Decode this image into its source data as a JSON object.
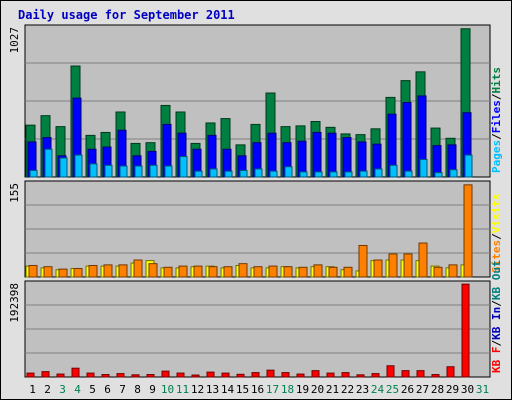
{
  "colors": {
    "background": "#ffffff",
    "frame_bg": "#e0e0e0",
    "plot_bg": "#c0c0c0",
    "title": "#0000c0",
    "hits": "#008040",
    "files": "#0000ff",
    "pages": "#00c0ff",
    "visits": "#ffff00",
    "sites": "#ff8000",
    "kb_in": "#0000c0",
    "kb_out": "#008080",
    "kb_f": "#ff0000",
    "weekend_label": "#00804f"
  },
  "chart_data": {
    "title": "Daily usage for September 2011",
    "type": "bar",
    "categories": [
      "1",
      "2",
      "3",
      "4",
      "5",
      "6",
      "7",
      "8",
      "9",
      "10",
      "11",
      "12",
      "13",
      "14",
      "15",
      "16",
      "17",
      "18",
      "19",
      "20",
      "21",
      "22",
      "23",
      "24",
      "25",
      "26",
      "27",
      "28",
      "29",
      "30",
      "31"
    ],
    "weekend_days": [
      "3",
      "4",
      "10",
      "11",
      "17",
      "18",
      "24",
      "25",
      "31"
    ],
    "panels": [
      {
        "name": "hits-files-pages",
        "ymax_label": "1027",
        "ymax": 1027,
        "legend": [
          "Pages",
          "/",
          "Files",
          "/",
          "Hits"
        ],
        "series": [
          {
            "name": "Hits",
            "color_key": "hits",
            "values": [
              355,
              420,
              345,
              760,
              285,
              305,
              445,
              230,
              235,
              490,
              445,
              230,
              370,
              400,
              220,
              360,
              575,
              345,
              350,
              380,
              340,
              295,
              290,
              330,
              545,
              660,
              720,
              335,
              265,
              1015,
              0
            ]
          },
          {
            "name": "Files",
            "color_key": "files",
            "values": [
              240,
              270,
              145,
              540,
              190,
              205,
              320,
              145,
              175,
              360,
              300,
              190,
              285,
              190,
              145,
              235,
              300,
              235,
              245,
              305,
              300,
              270,
              240,
              225,
              430,
              510,
              555,
              215,
              220,
              440,
              0
            ]
          },
          {
            "name": "Pages",
            "color_key": "pages",
            "values": [
              45,
              190,
              130,
              150,
              90,
              80,
              75,
              75,
              80,
              75,
              140,
              40,
              55,
              40,
              45,
              55,
              40,
              70,
              35,
              35,
              35,
              35,
              40,
              55,
              80,
              40,
              120,
              30,
              50,
              150,
              0
            ]
          }
        ]
      },
      {
        "name": "visits-sites",
        "ymax_label": "155",
        "ymax": 155,
        "legend": [
          "Sites",
          "/",
          "Visits"
        ],
        "series": [
          {
            "name": "Visits",
            "color_key": "visits",
            "values": [
              18,
              15,
              12,
              14,
              18,
              18,
              18,
              23,
              27,
              15,
              15,
              17,
              18,
              15,
              19,
              15,
              15,
              17,
              15,
              17,
              17,
              12,
              10,
              27,
              28,
              28,
              27,
              18,
              15,
              20,
              0
            ]
          },
          {
            "name": "Sites",
            "color_key": "sites",
            "values": [
              19,
              17,
              13,
              14,
              19,
              20,
              20,
              28,
              22,
              16,
              18,
              18,
              17,
              17,
              22,
              17,
              18,
              17,
              16,
              20,
              16,
              16,
              52,
              28,
              38,
              38,
              56,
              16,
              20,
              152,
              0
            ]
          }
        ]
      },
      {
        "name": "kbytes",
        "ymax_label": "192398",
        "ymax": 192398,
        "legend": [
          "KB F",
          "/",
          "KB In",
          "/",
          "KB Out"
        ],
        "series": [
          {
            "name": "KB F",
            "color_key": "kb_f",
            "values": [
              8000,
              11000,
              6000,
              18000,
              8000,
              5000,
              7000,
              4500,
              5000,
              12000,
              8000,
              4000,
              10000,
              8000,
              5500,
              9000,
              14000,
              9000,
              6000,
              13000,
              8000,
              9000,
              4500,
              7000,
              23000,
              13000,
              13000,
              5000,
              21000,
              190000,
              0
            ]
          }
        ]
      }
    ]
  }
}
